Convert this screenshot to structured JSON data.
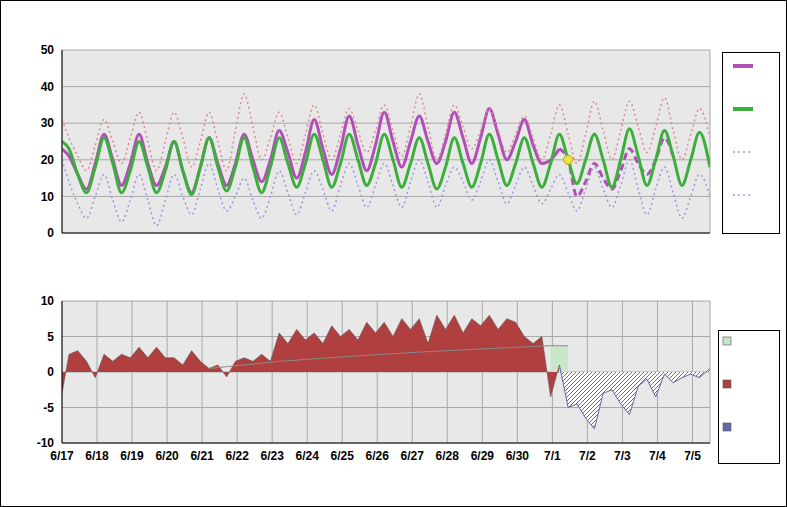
{
  "chart_data": [
    {
      "type": "line",
      "x": [
        0,
        0.2,
        0.45,
        0.7,
        0.95,
        1.2,
        1.45,
        1.7,
        1.95,
        2.2,
        2.45,
        2.7,
        2.95,
        3.2,
        3.45,
        3.7,
        3.95,
        4.2,
        4.45,
        4.7,
        4.95,
        5.2,
        5.45,
        5.7,
        5.95,
        6.2,
        6.45,
        6.7,
        6.95,
        7.2,
        7.45,
        7.7,
        7.95,
        8.2,
        8.45,
        8.7,
        8.95,
        9.2,
        9.45,
        9.7,
        9.95,
        10.2,
        10.45,
        10.7,
        10.95,
        11.2,
        11.45,
        11.7,
        11.95,
        12.2,
        12.45,
        12.7,
        12.95,
        13.2,
        13.45,
        13.7,
        13.95,
        14.2,
        14.45,
        14.7,
        14.95,
        15.2,
        15.45,
        15.7,
        15.95,
        16.2,
        16.45,
        16.7,
        16.95,
        17.2,
        17.45,
        17.7,
        17.95,
        18.2,
        18.5
      ],
      "xlim": [
        0,
        18.5
      ],
      "xticks": [
        0,
        1,
        2,
        3,
        4,
        5,
        6,
        7,
        8,
        9,
        10,
        11,
        12,
        13,
        14,
        15,
        16,
        17,
        18
      ],
      "ylim": [
        0,
        50
      ],
      "yticks": [
        0,
        10,
        20,
        30,
        40,
        50
      ],
      "grid": true,
      "tick_labels": "y",
      "series": [
        {
          "type": "line",
          "color": "#b04fb8",
          "line_style": "solid",
          "values": [
            23,
            21,
            16,
            12,
            19,
            27,
            20,
            13,
            19,
            27,
            19,
            13,
            18,
            25,
            17,
            11,
            18,
            26,
            19,
            13,
            19,
            27,
            20,
            14,
            20,
            28,
            22,
            15,
            22,
            31,
            23,
            16,
            23,
            32,
            24,
            17,
            24,
            33,
            25,
            18,
            25,
            32,
            25,
            19,
            25,
            33,
            26,
            19,
            26,
            34,
            27,
            20,
            25,
            31,
            24,
            19,
            20,
            23,
            null,
            null,
            null,
            null,
            null,
            null,
            null,
            null,
            null,
            null,
            null,
            null,
            null,
            null,
            null,
            null,
            null
          ]
        },
        {
          "type": "line",
          "color": "#b04fb8",
          "line_style": "dashed",
          "x": [
            14.2,
            14.45,
            14.7,
            14.95,
            15.2,
            15.45,
            15.7,
            15.95,
            16.2,
            16.45,
            16.7,
            16.95,
            17.2,
            17.45
          ],
          "values": [
            23,
            20,
            10,
            14,
            19,
            15,
            12,
            17,
            23,
            19,
            16,
            20,
            26,
            21
          ]
        },
        {
          "type": "line",
          "color": "#3cae3c",
          "line_style": "solid",
          "values": [
            25,
            23,
            16,
            11,
            18,
            26,
            19,
            11,
            17,
            25,
            18,
            11,
            17,
            25,
            17,
            10.5,
            18,
            26,
            18,
            11.5,
            18,
            26,
            18,
            11,
            18,
            26,
            19,
            12.5,
            19,
            27,
            20,
            12.5,
            19,
            27,
            20,
            13,
            19,
            27,
            20,
            12.5,
            19,
            26,
            19,
            12,
            18,
            26,
            19,
            12.5,
            19,
            27,
            20,
            13,
            19,
            26,
            19,
            12.5,
            19,
            27,
            20,
            13.5,
            20,
            27,
            20,
            12.5,
            20,
            28.5,
            21,
            13,
            20,
            28,
            21,
            13,
            20,
            27.5,
            18
          ]
        },
        {
          "type": "line",
          "color": "#d98c8c",
          "line_style": "dotted",
          "values": [
            31,
            26,
            21,
            17,
            24,
            31,
            25,
            19,
            26,
            33,
            25,
            17,
            25,
            33,
            26,
            18,
            25,
            33,
            25,
            17,
            28,
            38,
            29,
            20,
            26,
            33,
            26,
            19,
            27,
            35,
            27,
            20,
            27,
            34,
            28,
            22,
            28,
            35,
            28,
            21,
            29,
            38,
            29,
            20,
            27,
            35,
            29,
            23,
            28,
            34,
            28,
            22,
            27,
            32,
            26,
            20,
            27,
            35,
            27,
            19,
            27,
            36,
            28,
            20,
            28,
            36,
            29,
            22,
            29,
            37,
            28,
            20,
            27,
            34,
            26
          ]
        },
        {
          "type": "line",
          "color": "#9999dd",
          "line_style": "dotted",
          "values": [
            20,
            14,
            8,
            4,
            10,
            16,
            9,
            3,
            9,
            16,
            9,
            2,
            9,
            16,
            10,
            5,
            12,
            19,
            12,
            6,
            10,
            15,
            9,
            4,
            10,
            17,
            11,
            5,
            11,
            17,
            12,
            6,
            13,
            19,
            13,
            7,
            13,
            19,
            13,
            7,
            14,
            20,
            14,
            7,
            13,
            18,
            14,
            9,
            14,
            20,
            14,
            8,
            13,
            18,
            13,
            8,
            12,
            16,
            11,
            6,
            12,
            18,
            12,
            7,
            13,
            20,
            12,
            5,
            12,
            18,
            11,
            4,
            10,
            16,
            10
          ]
        },
        {
          "type": "scatter",
          "color": "#f2e24a",
          "marker": "circle",
          "x": [
            14.45
          ],
          "values": [
            20
          ]
        }
      ]
    },
    {
      "type": "area",
      "x": [
        0,
        0.2,
        0.45,
        0.7,
        0.95,
        1.2,
        1.45,
        1.7,
        1.95,
        2.2,
        2.45,
        2.7,
        2.95,
        3.2,
        3.45,
        3.7,
        3.95,
        4.2,
        4.45,
        4.7,
        4.95,
        5.2,
        5.45,
        5.7,
        5.95,
        6.2,
        6.45,
        6.7,
        6.95,
        7.2,
        7.45,
        7.7,
        7.95,
        8.2,
        8.45,
        8.7,
        8.95,
        9.2,
        9.45,
        9.7,
        9.95,
        10.2,
        10.45,
        10.7,
        10.95,
        11.2,
        11.45,
        11.7,
        11.95,
        12.2,
        12.45,
        12.7,
        12.95,
        13.2,
        13.45,
        13.7,
        13.95,
        14.2,
        14.45,
        14.7,
        14.95,
        15.2,
        15.45,
        15.7,
        15.95,
        16.2,
        16.45,
        16.7,
        16.95,
        17.2,
        17.45,
        17.7,
        17.95,
        18.2,
        18.5
      ],
      "xlim": [
        0,
        18.5
      ],
      "xticks": [
        {
          "value": 0,
          "label": "6/17"
        },
        {
          "value": 1,
          "label": "6/18"
        },
        {
          "value": 2,
          "label": "6/19"
        },
        {
          "value": 3,
          "label": "6/20"
        },
        {
          "value": 4,
          "label": "6/21"
        },
        {
          "value": 5,
          "label": "6/22"
        },
        {
          "value": 6,
          "label": "6/23"
        },
        {
          "value": 7,
          "label": "6/24"
        },
        {
          "value": 8,
          "label": "6/25"
        },
        {
          "value": 9,
          "label": "6/26"
        },
        {
          "value": 10,
          "label": "6/27"
        },
        {
          "value": 11,
          "label": "6/28"
        },
        {
          "value": 12,
          "label": "6/29"
        },
        {
          "value": 13,
          "label": "6/30"
        },
        {
          "value": 14,
          "label": "7/1"
        },
        {
          "value": 15,
          "label": "7/2"
        },
        {
          "value": 16,
          "label": "7/3"
        },
        {
          "value": 17,
          "label": "7/4"
        },
        {
          "value": 18,
          "label": "7/5"
        }
      ],
      "ylim": [
        -10,
        10
      ],
      "yticks": [
        -10,
        -5,
        0,
        5,
        10
      ],
      "grid": true,
      "series": [
        {
          "type": "area",
          "color": "#c8e6c8",
          "line_style": "solid",
          "x": [
            13.95,
            14.2,
            14.45
          ],
          "values": [
            3.7,
            3.7,
            3.7
          ]
        },
        {
          "type": "area",
          "color": "#b04040",
          "line_style": "solid",
          "values": [
            -3,
            2.5,
            3,
            1.5,
            -0.8,
            2.5,
            1.5,
            2.5,
            2,
            3.5,
            2,
            3.5,
            2,
            2,
            1,
            3,
            1.5,
            0.5,
            1,
            -0.7,
            1.5,
            2,
            1.5,
            2.5,
            1.5,
            5.5,
            4,
            6,
            4.5,
            5.5,
            4,
            6.5,
            5,
            6,
            4.5,
            7,
            5.5,
            7,
            5,
            7.5,
            6,
            7.5,
            4,
            8,
            6,
            8,
            5.5,
            7.5,
            6.5,
            8,
            6,
            7.5,
            7,
            5,
            4,
            5,
            -3.5,
            1,
            null,
            null,
            null,
            null,
            null,
            null,
            null,
            null,
            null,
            null,
            null,
            null,
            null,
            null,
            null,
            null,
            null
          ]
        },
        {
          "type": "area",
          "color": "#6666aa",
          "line_style": "hatched",
          "x": [
            14.2,
            14.45,
            14.7,
            14.95,
            15.2,
            15.45,
            15.7,
            15.95,
            16.2,
            16.45,
            16.7,
            16.95,
            17.2,
            17.45,
            17.7,
            17.95,
            18.2,
            18.5
          ],
          "values": [
            1,
            -5,
            -4.5,
            -6.5,
            -8,
            -3,
            -2.5,
            -4.5,
            -6,
            -2,
            -1,
            -3.5,
            -0.3,
            -1.5,
            -0.8,
            -0.3,
            -0.8,
            0.5
          ]
        },
        {
          "type": "line",
          "color": "#8a8a8a",
          "line_style": "solid",
          "x": [
            4.2,
            6.2,
            8.2,
            10.2,
            12.2,
            13.95
          ],
          "values": [
            0.5,
            1.5,
            2.2,
            2.8,
            3.3,
            3.7
          ]
        }
      ]
    }
  ]
}
